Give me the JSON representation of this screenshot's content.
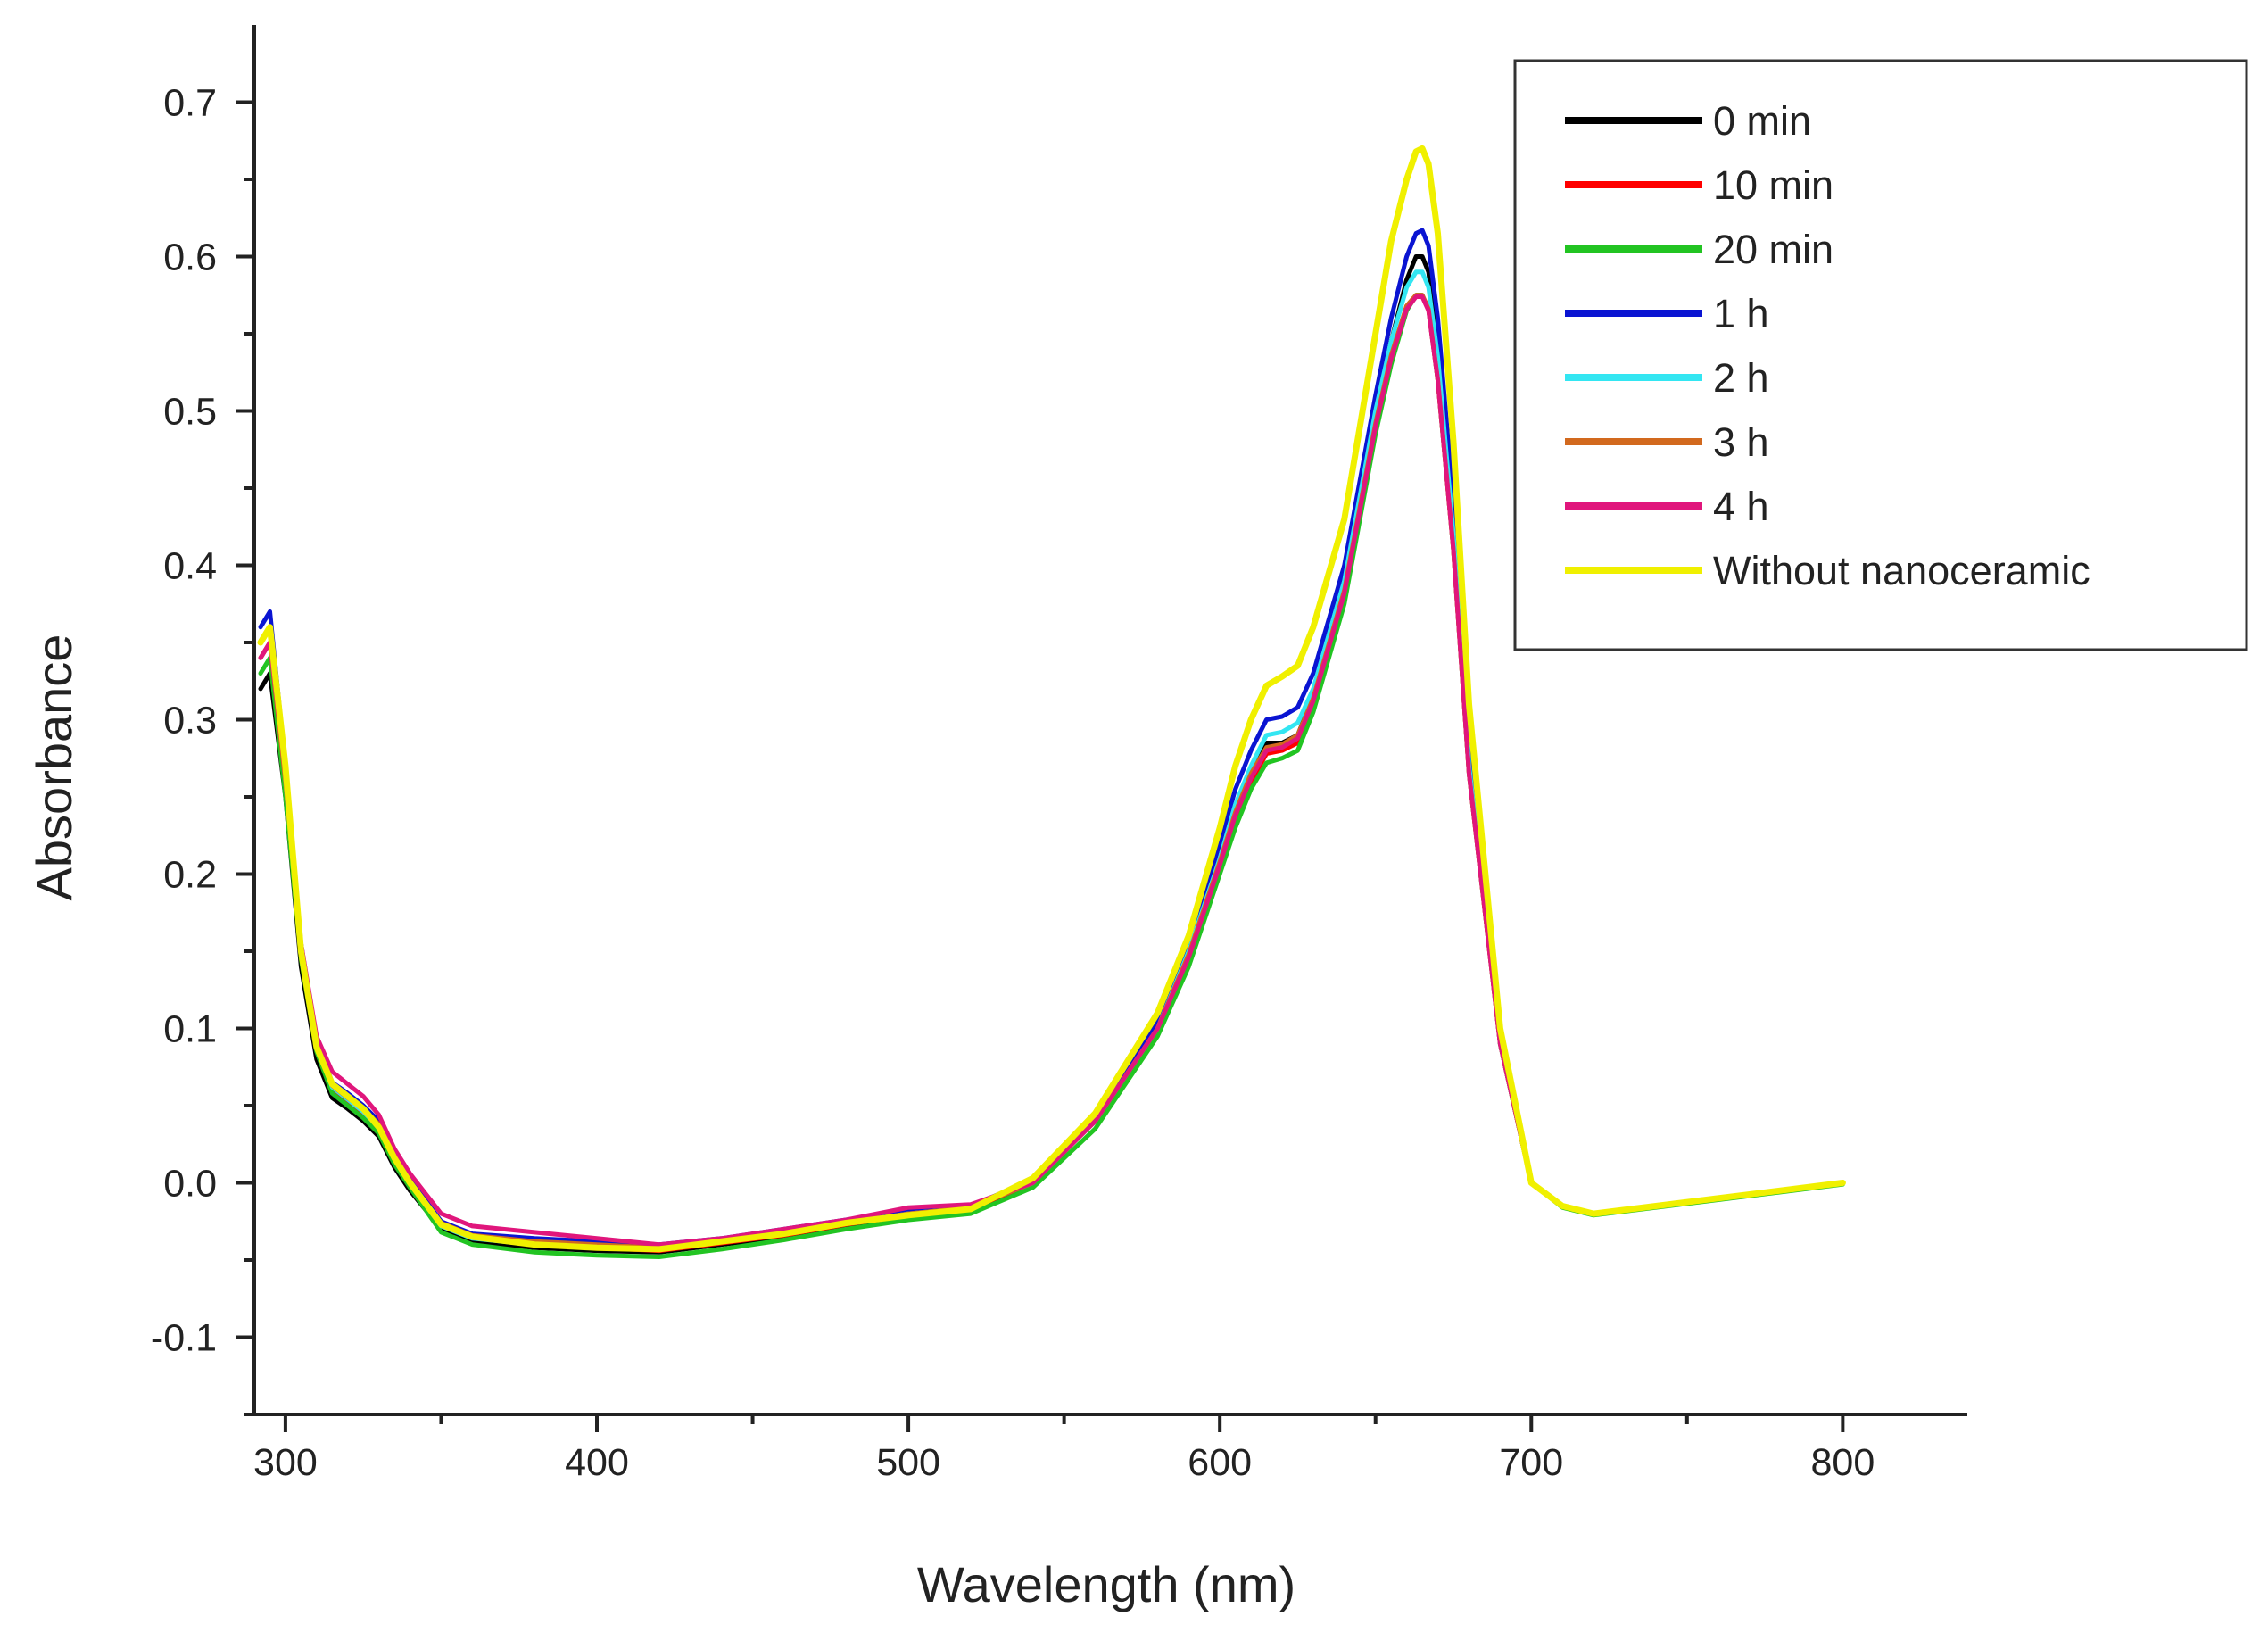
{
  "chart_data": {
    "type": "line",
    "title": "",
    "xlabel": "Wavelength (nm)",
    "ylabel": "Absorbance",
    "xlim": [
      290,
      840
    ],
    "ylim": [
      -0.15,
      0.75
    ],
    "x_ticks": [
      300,
      400,
      500,
      600,
      700,
      800
    ],
    "x_tick_labels": [
      "300",
      "400",
      "500",
      "600",
      "700",
      "800"
    ],
    "y_ticks": [
      -0.1,
      0.0,
      0.1,
      0.2,
      0.3,
      0.4,
      0.5,
      0.6,
      0.7
    ],
    "y_tick_labels": [
      "-0.1",
      "0.0",
      "0.1",
      "0.2",
      "0.3",
      "0.4",
      "0.5",
      "0.6",
      "0.7"
    ],
    "grid": false,
    "legend_position": "top-right",
    "x": [
      292,
      295,
      300,
      305,
      310,
      315,
      320,
      325,
      330,
      335,
      340,
      350,
      360,
      380,
      400,
      420,
      440,
      460,
      480,
      500,
      520,
      540,
      560,
      580,
      590,
      600,
      605,
      610,
      615,
      620,
      625,
      630,
      640,
      650,
      655,
      660,
      663,
      665,
      667,
      670,
      675,
      680,
      690,
      700,
      710,
      720,
      740,
      760,
      780,
      800
    ],
    "series": [
      {
        "name": "0 min",
        "color": "#000000",
        "values": [
          0.32,
          0.33,
          0.25,
          0.14,
          0.08,
          0.055,
          0.048,
          0.04,
          0.03,
          0.01,
          -0.005,
          -0.03,
          -0.038,
          -0.042,
          -0.044,
          -0.045,
          -0.04,
          -0.035,
          -0.028,
          -0.022,
          -0.018,
          0.0,
          0.04,
          0.1,
          0.15,
          0.21,
          0.24,
          0.265,
          0.285,
          0.285,
          0.29,
          0.315,
          0.385,
          0.495,
          0.545,
          0.585,
          0.6,
          0.6,
          0.59,
          0.54,
          0.42,
          0.27,
          0.09,
          0.0,
          -0.015,
          -0.02,
          -0.015,
          -0.01,
          -0.005,
          0.0
        ]
      },
      {
        "name": "10 min",
        "color": "#ff0000",
        "values": [
          0.34,
          0.35,
          0.26,
          0.15,
          0.09,
          0.06,
          0.052,
          0.044,
          0.034,
          0.014,
          -0.002,
          -0.027,
          -0.035,
          -0.04,
          -0.042,
          -0.044,
          -0.039,
          -0.034,
          -0.027,
          -0.021,
          -0.017,
          0.0,
          0.04,
          0.1,
          0.145,
          0.205,
          0.235,
          0.26,
          0.278,
          0.28,
          0.285,
          0.31,
          0.38,
          0.49,
          0.535,
          0.568,
          0.575,
          0.575,
          0.566,
          0.52,
          0.41,
          0.265,
          0.09,
          0.0,
          -0.015,
          -0.02,
          -0.015,
          -0.01,
          -0.005,
          0.0
        ]
      },
      {
        "name": "20 min",
        "color": "#22c422",
        "values": [
          0.33,
          0.34,
          0.25,
          0.145,
          0.085,
          0.058,
          0.05,
          0.042,
          0.032,
          0.012,
          -0.003,
          -0.032,
          -0.04,
          -0.045,
          -0.047,
          -0.048,
          -0.043,
          -0.037,
          -0.03,
          -0.024,
          -0.02,
          -0.003,
          0.035,
          0.095,
          0.14,
          0.2,
          0.23,
          0.255,
          0.272,
          0.275,
          0.28,
          0.305,
          0.375,
          0.485,
          0.53,
          0.565,
          0.575,
          0.575,
          0.566,
          0.52,
          0.41,
          0.265,
          0.09,
          0.0,
          -0.016,
          -0.021,
          -0.016,
          -0.011,
          -0.006,
          -0.001
        ]
      },
      {
        "name": "1 h",
        "color": "#0a14d2",
        "values": [
          0.36,
          0.37,
          0.27,
          0.155,
          0.092,
          0.065,
          0.058,
          0.05,
          0.04,
          0.018,
          0.002,
          -0.025,
          -0.033,
          -0.036,
          -0.038,
          -0.04,
          -0.036,
          -0.03,
          -0.024,
          -0.018,
          -0.015,
          0.002,
          0.042,
          0.105,
          0.155,
          0.22,
          0.255,
          0.28,
          0.3,
          0.302,
          0.308,
          0.33,
          0.4,
          0.51,
          0.56,
          0.6,
          0.615,
          0.617,
          0.607,
          0.56,
          0.44,
          0.285,
          0.095,
          0.0,
          -0.015,
          -0.02,
          -0.015,
          -0.01,
          -0.005,
          0.0
        ]
      },
      {
        "name": "2 h",
        "color": "#33e6f2",
        "values": [
          0.35,
          0.36,
          0.26,
          0.15,
          0.088,
          0.062,
          0.054,
          0.046,
          0.036,
          0.016,
          0.0,
          -0.028,
          -0.036,
          -0.04,
          -0.042,
          -0.043,
          -0.038,
          -0.033,
          -0.026,
          -0.02,
          -0.016,
          0.0,
          0.04,
          0.1,
          0.15,
          0.21,
          0.245,
          0.27,
          0.29,
          0.292,
          0.298,
          0.32,
          0.39,
          0.5,
          0.545,
          0.58,
          0.59,
          0.59,
          0.58,
          0.535,
          0.42,
          0.27,
          0.09,
          0.0,
          -0.015,
          -0.02,
          -0.015,
          -0.01,
          -0.005,
          0.0
        ]
      },
      {
        "name": "3 h",
        "color": "#d2691e",
        "values": [
          0.34,
          0.35,
          0.26,
          0.15,
          0.09,
          0.063,
          0.055,
          0.048,
          0.038,
          0.017,
          0.001,
          -0.026,
          -0.034,
          -0.038,
          -0.04,
          -0.042,
          -0.038,
          -0.032,
          -0.026,
          -0.02,
          -0.016,
          0.0,
          0.04,
          0.1,
          0.148,
          0.208,
          0.24,
          0.265,
          0.282,
          0.284,
          0.29,
          0.314,
          0.384,
          0.492,
          0.536,
          0.568,
          0.575,
          0.575,
          0.566,
          0.52,
          0.41,
          0.265,
          0.09,
          0.0,
          -0.015,
          -0.02,
          -0.015,
          -0.01,
          -0.005,
          0.0
        ]
      },
      {
        "name": "4 h",
        "color": "#e0167c",
        "values": [
          0.34,
          0.35,
          0.265,
          0.155,
          0.095,
          0.072,
          0.064,
          0.056,
          0.044,
          0.022,
          0.006,
          -0.02,
          -0.028,
          -0.032,
          -0.036,
          -0.04,
          -0.036,
          -0.03,
          -0.024,
          -0.016,
          -0.014,
          0.0,
          0.04,
          0.1,
          0.146,
          0.206,
          0.238,
          0.262,
          0.28,
          0.282,
          0.288,
          0.312,
          0.382,
          0.49,
          0.534,
          0.566,
          0.574,
          0.574,
          0.565,
          0.52,
          0.41,
          0.265,
          0.09,
          0.0,
          -0.015,
          -0.02,
          -0.015,
          -0.01,
          -0.005,
          0.0
        ]
      },
      {
        "name": "Without nanoceramic",
        "color": "#f0f000",
        "values": [
          0.35,
          0.36,
          0.27,
          0.15,
          0.088,
          0.064,
          0.056,
          0.048,
          0.036,
          0.016,
          0.0,
          -0.027,
          -0.035,
          -0.04,
          -0.042,
          -0.043,
          -0.038,
          -0.033,
          -0.026,
          -0.021,
          -0.017,
          0.003,
          0.045,
          0.11,
          0.16,
          0.23,
          0.27,
          0.3,
          0.322,
          0.328,
          0.335,
          0.36,
          0.43,
          0.55,
          0.61,
          0.65,
          0.668,
          0.67,
          0.66,
          0.615,
          0.48,
          0.31,
          0.1,
          0.0,
          -0.015,
          -0.02,
          -0.015,
          -0.01,
          -0.005,
          0.0
        ]
      }
    ]
  }
}
